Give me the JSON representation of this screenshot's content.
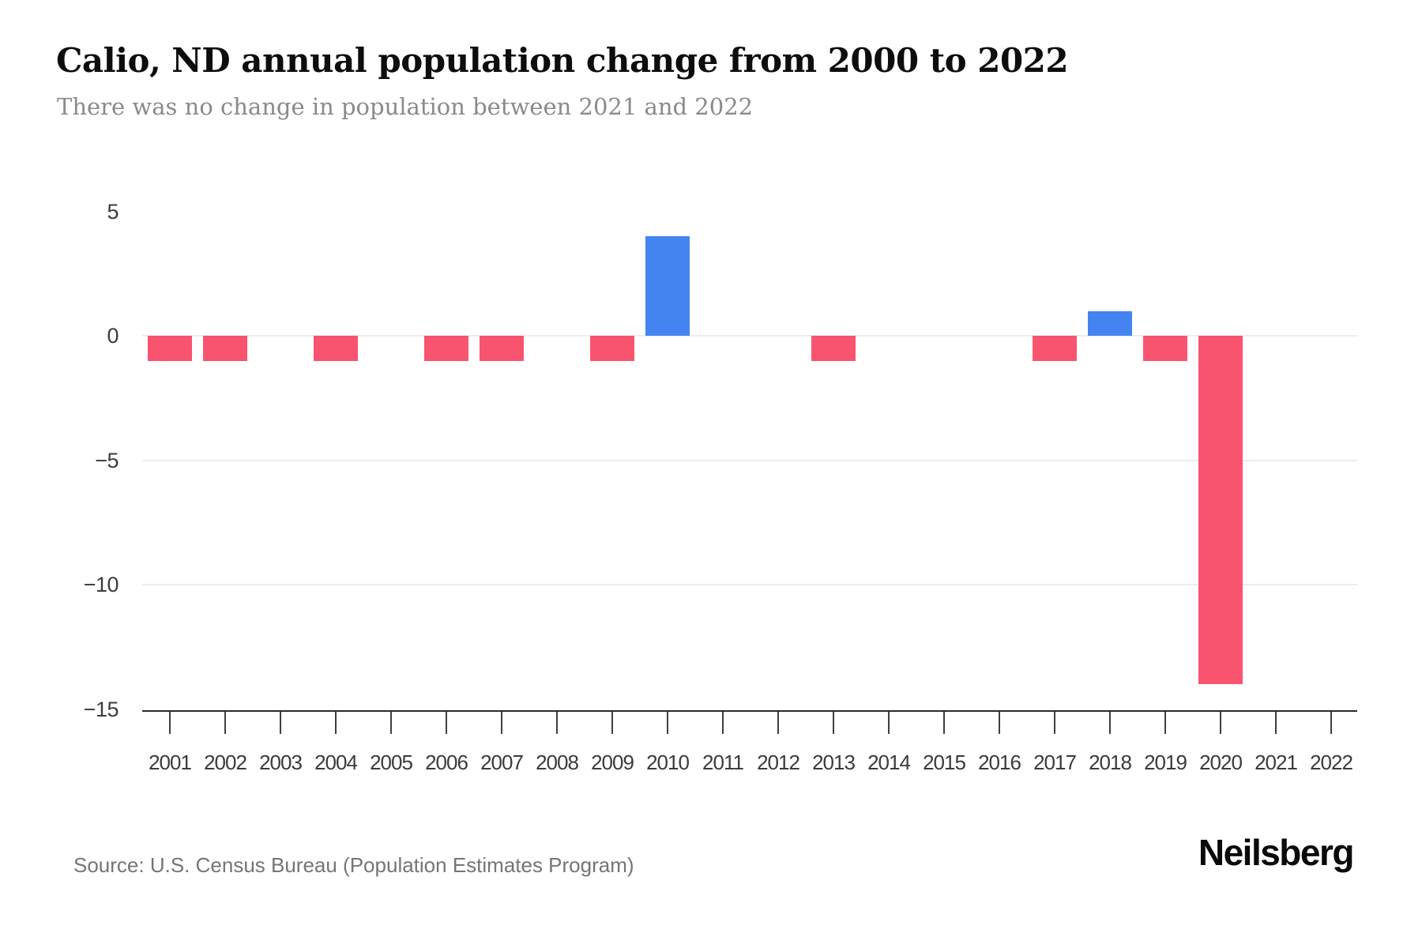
{
  "header": {
    "title": "Calio, ND annual population change from 2000 to 2022",
    "subtitle": "There was no change in population between 2021 and 2022"
  },
  "footer": {
    "source": "Source: U.S. Census Bureau (Population Estimates Program)",
    "brand": "Neilsberg"
  },
  "colors": {
    "positive_bar": "#4484F0",
    "negative_bar": "#F9546F",
    "gridline": "#ededed",
    "axis": "#2b2b2b",
    "tick": "#3f3f3f",
    "axis_label": "#3b3b3b",
    "title": "#0d0d0d",
    "subtitle": "#8a8a8a",
    "source": "#757575"
  },
  "chart_data": {
    "type": "bar",
    "title": "Calio, ND annual population change from 2000 to 2022",
    "subtitle": "There was no change in population between 2021 and 2022",
    "xlabel": "",
    "ylabel": "",
    "categories": [
      "2001",
      "2002",
      "2003",
      "2004",
      "2005",
      "2006",
      "2007",
      "2008",
      "2009",
      "2010",
      "2011",
      "2012",
      "2013",
      "2014",
      "2015",
      "2016",
      "2017",
      "2018",
      "2019",
      "2020",
      "2021",
      "2022"
    ],
    "values": [
      -1,
      -1,
      0,
      -1,
      0,
      -1,
      -1,
      0,
      -1,
      4,
      0,
      0,
      -1,
      0,
      0,
      0,
      -1,
      1,
      -1,
      -14,
      0,
      0
    ],
    "ylim": [
      -15,
      5
    ],
    "yticks": [
      {
        "value": 5,
        "label": "5"
      },
      {
        "value": 0,
        "label": "0"
      },
      {
        "value": -5,
        "label": "−5"
      },
      {
        "value": -10,
        "label": "−10"
      },
      {
        "value": -15,
        "label": "−15"
      }
    ],
    "gridline_values": [
      0,
      -5,
      -10
    ],
    "legend": "none",
    "grid": "horizontal"
  }
}
